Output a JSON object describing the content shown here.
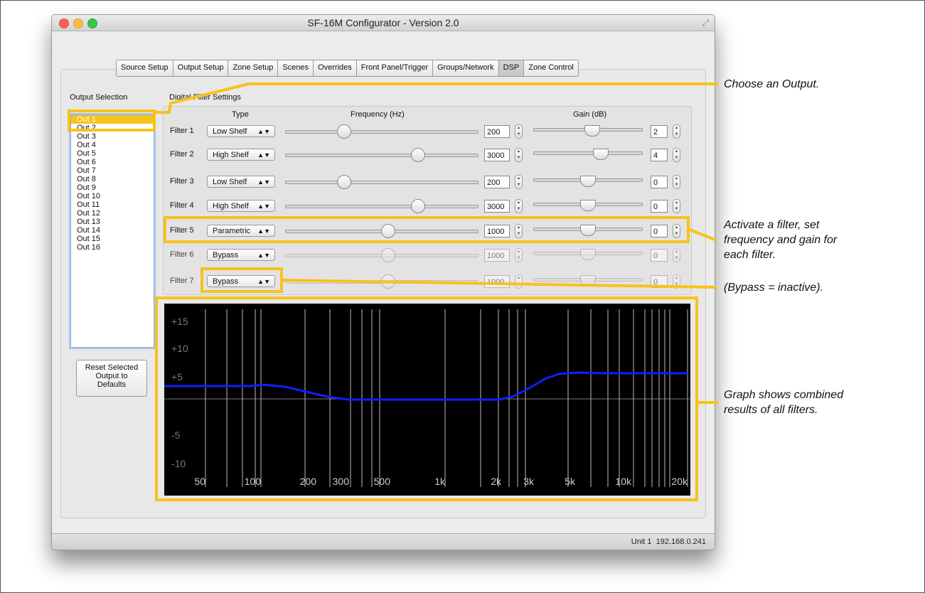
{
  "window": {
    "title": "SF-16M Configurator - Version 2.0"
  },
  "tabs": [
    "Source Setup",
    "Output Setup",
    "Zone Setup",
    "Scenes",
    "Overrides",
    "Front Panel/Trigger",
    "Groups/Network",
    "DSP",
    "Zone Control"
  ],
  "active_tab": "DSP",
  "output_selection": {
    "label": "Output Selection",
    "items": [
      "Out 1",
      "Out 2",
      "Out 3",
      "Out 4",
      "Out 5",
      "Out 6",
      "Out 7",
      "Out 8",
      "Out 9",
      "Out 10",
      "Out 11",
      "Out 12",
      "Out 13",
      "Out 14",
      "Out 15",
      "Out 16"
    ],
    "selected": "Out 1"
  },
  "reset_button": {
    "line1": "Reset Selected",
    "line2": "Output to",
    "line3": "Defaults"
  },
  "digital_filter": {
    "label": "Digital Filter Settings",
    "col_type": "Type",
    "col_freq": "Frequency (Hz)",
    "col_gain": "Gain (dB)",
    "filters": [
      {
        "name": "Filter 1",
        "type": "Low Shelf",
        "freq": "200",
        "gain": "2"
      },
      {
        "name": "Filter 2",
        "type": "High Shelf",
        "freq": "3000",
        "gain": "4"
      },
      {
        "name": "Filter 3",
        "type": "Low Shelf",
        "freq": "200",
        "gain": "0"
      },
      {
        "name": "Filter 4",
        "type": "High Shelf",
        "freq": "3000",
        "gain": "0"
      },
      {
        "name": "Filter 5",
        "type": "Parametric",
        "freq": "1000",
        "gain": "0"
      },
      {
        "name": "Filter 6",
        "type": "Bypass",
        "freq": "1000",
        "gain": "0"
      },
      {
        "name": "Filter 7",
        "type": "Bypass",
        "freq": "1000",
        "gain": "0"
      }
    ]
  },
  "graph": {
    "y_labels": [
      "+15",
      "+10",
      "+5",
      "-5",
      "-10"
    ],
    "x_labels": [
      "50",
      "100",
      "200",
      "300",
      "500",
      "1k",
      "2k",
      "3k",
      "5k",
      "10k",
      "20k"
    ],
    "curve_color": "#1020ff"
  },
  "status": {
    "unit": "Unit 1",
    "ip": "192.168.0.241"
  },
  "annotations": {
    "choose": "Choose an Output.",
    "activate1": "Activate a filter, set",
    "activate2": "frequency and gain for",
    "activate3": "each filter.",
    "bypass": "(Bypass = inactive).",
    "graph1": "Graph shows combined",
    "graph2": "results of all filters."
  },
  "highlight_color": "#f7c21a"
}
